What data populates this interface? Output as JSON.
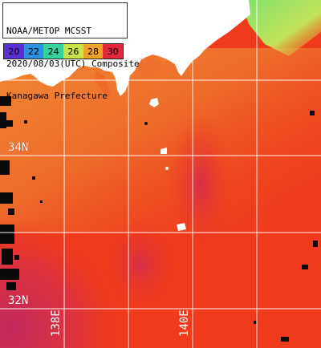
{
  "title_lines": [
    "NOAA/METOP MCSST",
    "2020/08/03(UTC) Composite",
    "Kanagawa Prefecture"
  ],
  "legend": {
    "items": [
      {
        "value": "20",
        "color": "#5a2fd6"
      },
      {
        "value": "22",
        "color": "#2f8fe0"
      },
      {
        "value": "24",
        "color": "#35d39b"
      },
      {
        "value": "26",
        "color": "#c9e34a"
      },
      {
        "value": "28",
        "color": "#f0a12a"
      },
      {
        "value": "30",
        "color": "#e4283c"
      }
    ]
  },
  "grid_labels": {
    "lat_34": "34N",
    "lat_32": "32N",
    "lon_138": "138E",
    "lon_140": "140E"
  },
  "colors": {
    "sea_warm": "#ef3a1c",
    "sea_orange": "#ee6a2a",
    "sea_magenta": "#c82a5a",
    "land": "#ffffff",
    "coast_green": "#8ae06a",
    "grid": "#ffffff"
  }
}
